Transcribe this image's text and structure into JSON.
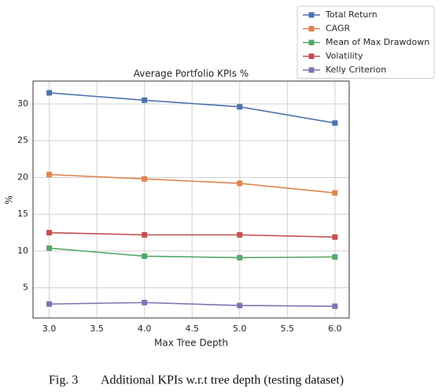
{
  "chart_data": {
    "type": "line",
    "title": "Average Portfolio KPIs %",
    "x_label": "Max Tree Depth",
    "y_label": "%",
    "x": [
      3.0,
      4.0,
      5.0,
      6.0
    ],
    "series": [
      {
        "name": "Total Return",
        "color": "#4c72b0",
        "values": [
          31.5,
          30.5,
          29.6,
          27.4
        ]
      },
      {
        "name": "CAGR",
        "color": "#dd8452",
        "values": [
          20.4,
          19.8,
          19.2,
          17.9
        ]
      },
      {
        "name": "Mean of Max Drawdown",
        "color": "#55a868",
        "values": [
          10.4,
          9.3,
          9.1,
          9.2
        ]
      },
      {
        "name": "Volatility",
        "color": "#c44e52",
        "values": [
          12.5,
          12.2,
          12.2,
          11.9
        ]
      },
      {
        "name": "Kelly Criterion",
        "color": "#8172b3",
        "values": [
          2.8,
          3.0,
          2.6,
          2.5
        ]
      }
    ],
    "xlim": [
      2.83,
      6.15
    ],
    "xticks": [
      {
        "value": 3,
        "label": "3.0"
      },
      3.5,
      {
        "value": 4,
        "label": "4.0"
      },
      4.5,
      {
        "value": 5,
        "label": "5.0"
      },
      5.5,
      {
        "value": 6,
        "label": "6.0"
      }
    ],
    "ylim": [
      0.9,
      33.1
    ],
    "yticks": [
      5,
      10,
      15,
      20,
      25,
      30
    ],
    "grid": true,
    "legend": "upper right outside",
    "caption_label": "Fig. 3",
    "caption": "Additional KPIs w.r.t tree depth (testing dataset)"
  }
}
